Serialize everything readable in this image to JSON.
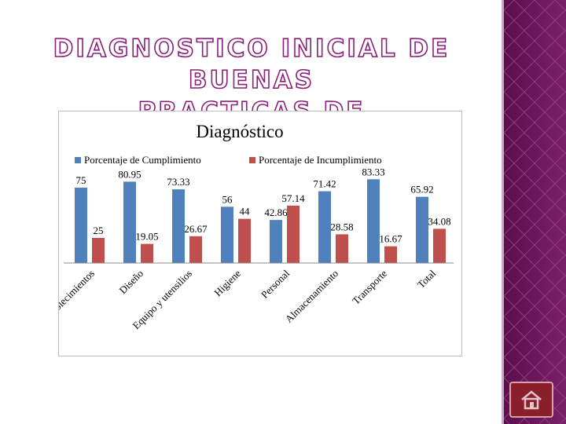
{
  "slide": {
    "title_line1": "DIAGNOSTICO INICIAL DE BUENAS",
    "title_line2": "PRACTICAS DE MANUFACTURA"
  },
  "colors": {
    "series1": "#4f81bd",
    "series2": "#c0504d",
    "panel": "#6a1459",
    "title_outline": "#8a1f7a"
  },
  "nav": {
    "home_icon": "home-icon"
  },
  "chart_data": {
    "type": "bar",
    "title": "Diagnóstico",
    "legend_position": "top",
    "categories": [
      "Establecimientos",
      "Diseño",
      "Equipo y utensilios",
      "Higiene",
      "Personal",
      "Almacenamiento",
      "Transporte",
      "Total"
    ],
    "series": [
      {
        "name": "Porcentaje de Cumplimiento",
        "values": [
          75,
          80.95,
          73.33,
          56,
          42.86,
          71.42,
          83.33,
          65.92
        ],
        "labels": [
          "75",
          "80.95",
          "73.33",
          "56",
          "42.86",
          "71.42",
          "83.33",
          "65.92"
        ]
      },
      {
        "name": "Porcentaje de Incumplimiento",
        "values": [
          25,
          19.05,
          26.67,
          44,
          57.14,
          28.58,
          16.67,
          34.08
        ],
        "labels": [
          "25",
          "19.05",
          "26.67",
          "44",
          "57.14",
          "28.58",
          "16.67",
          "34.08"
        ]
      }
    ],
    "ylim": [
      0,
      100
    ],
    "xlabel": "",
    "ylabel": "",
    "grid": false
  }
}
